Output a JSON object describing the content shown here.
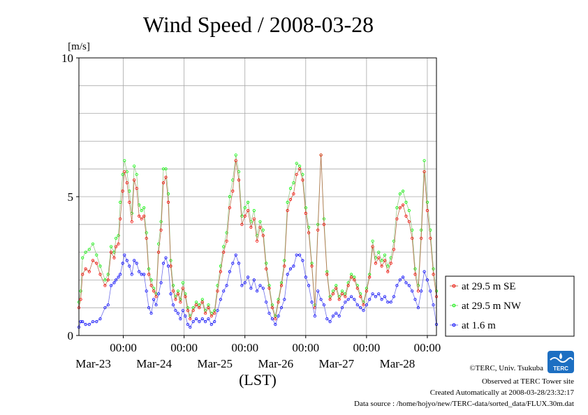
{
  "credits": {
    "copyright": "©TERC, Univ. Tsukuba",
    "observed": "Observed at TERC Tower site",
    "created": "Created Automatically at 2008-03-28/23:32:17",
    "source": "Data source : /home/hojyo/new/TERC-data/sorted_data/FLUX.30m.dat"
  },
  "logo": {
    "text": "TERC"
  },
  "chart_data": {
    "type": "line",
    "title": "Wind Speed / 2008-03-28",
    "ylabel": "[m/s]",
    "xlabel": "(LST)",
    "ylim": [
      0,
      10
    ],
    "y_ticks": [
      "0",
      "5",
      "10"
    ],
    "xlim": [
      -0.73,
      5.15
    ],
    "x_unit": "days from 2008-03-23 00:00 LST",
    "x_ticks": [
      {
        "time": "00:00",
        "date": "Mar-23"
      },
      {
        "time": "00:00",
        "date": "Mar-24"
      },
      {
        "time": "00:00",
        "date": "Mar-25"
      },
      {
        "time": "00:00",
        "date": "Mar-26"
      },
      {
        "time": "00:00",
        "date": "Mar-27"
      },
      {
        "time": "00:00",
        "date": "Mar-28"
      }
    ],
    "grid": true,
    "legend_position": "right",
    "series": [
      {
        "name": "at 29.5 m SE",
        "color": "#ff0000",
        "x": [
          -0.73,
          -0.7,
          -0.67,
          -0.62,
          -0.56,
          -0.5,
          -0.44,
          -0.38,
          -0.3,
          -0.25,
          -0.2,
          -0.15,
          -0.12,
          -0.08,
          -0.05,
          -0.01,
          0.02,
          0.06,
          0.1,
          0.14,
          0.18,
          0.22,
          0.26,
          0.3,
          0.34,
          0.38,
          0.42,
          0.46,
          0.5,
          0.54,
          0.58,
          0.62,
          0.66,
          0.7,
          0.74,
          0.78,
          0.82,
          0.86,
          0.9,
          0.94,
          0.98,
          1.02,
          1.06,
          1.1,
          1.15,
          1.2,
          1.25,
          1.3,
          1.35,
          1.4,
          1.45,
          1.5,
          1.55,
          1.6,
          1.65,
          1.7,
          1.75,
          1.8,
          1.85,
          1.9,
          1.95,
          2.0,
          2.05,
          2.1,
          2.15,
          2.2,
          2.25,
          2.3,
          2.35,
          2.4,
          2.45,
          2.5,
          2.55,
          2.6,
          2.65,
          2.7,
          2.75,
          2.8,
          2.85,
          2.9,
          2.95,
          3.0,
          3.05,
          3.1,
          3.15,
          3.2,
          3.25,
          3.3,
          3.35,
          3.4,
          3.45,
          3.5,
          3.55,
          3.6,
          3.65,
          3.7,
          3.75,
          3.8,
          3.85,
          3.9,
          3.95,
          4.0,
          4.05,
          4.1,
          4.15,
          4.2,
          4.25,
          4.3,
          4.35,
          4.4,
          4.45,
          4.5,
          4.55,
          4.6,
          4.65,
          4.7,
          4.75,
          4.8,
          4.85,
          4.9,
          4.95,
          5.0,
          5.05,
          5.1,
          5.15
        ],
        "values": [
          1.0,
          1.3,
          2.2,
          2.4,
          2.3,
          2.7,
          2.6,
          2.2,
          1.8,
          2.0,
          3.0,
          2.8,
          3.2,
          3.3,
          4.2,
          5.2,
          5.9,
          5.5,
          4.8,
          4.1,
          5.6,
          5.3,
          4.3,
          4.2,
          4.3,
          3.5,
          2.2,
          1.8,
          1.6,
          1.4,
          3.0,
          3.8,
          5.5,
          5.7,
          4.8,
          2.5,
          1.6,
          1.3,
          1.5,
          1.2,
          1.7,
          1.4,
          0.9,
          0.6,
          0.9,
          1.1,
          1.0,
          1.2,
          0.8,
          1.0,
          0.7,
          0.8,
          1.6,
          2.3,
          3.0,
          3.4,
          4.6,
          5.2,
          6.3,
          5.6,
          4.0,
          4.3,
          4.5,
          3.9,
          4.2,
          3.4,
          3.9,
          3.6,
          2.4,
          1.7,
          1.0,
          0.6,
          1.2,
          1.8,
          2.5,
          4.5,
          4.9,
          5.1,
          5.8,
          6.0,
          5.6,
          4.4,
          3.7,
          2.5,
          1.0,
          3.8,
          6.5,
          4.0,
          2.2,
          1.3,
          1.5,
          1.7,
          1.3,
          1.5,
          1.4,
          1.8,
          2.1,
          2.0,
          1.7,
          1.4,
          1.1,
          1.6,
          2.1,
          3.2,
          2.6,
          2.8,
          2.5,
          2.7,
          2.3,
          2.6,
          3.1,
          4.2,
          4.6,
          4.7,
          4.3,
          4.1,
          3.5,
          2.2,
          1.6,
          3.5,
          5.9,
          4.5,
          3.5,
          2.2,
          1.4
        ]
      },
      {
        "name": "at 29.5 m NW",
        "color": "#00ff00",
        "x": [
          -0.73,
          -0.7,
          -0.67,
          -0.62,
          -0.56,
          -0.5,
          -0.44,
          -0.38,
          -0.3,
          -0.25,
          -0.2,
          -0.15,
          -0.12,
          -0.08,
          -0.05,
          -0.01,
          0.02,
          0.06,
          0.1,
          0.14,
          0.18,
          0.22,
          0.26,
          0.3,
          0.34,
          0.38,
          0.42,
          0.46,
          0.5,
          0.54,
          0.58,
          0.62,
          0.66,
          0.7,
          0.74,
          0.78,
          0.82,
          0.86,
          0.9,
          0.94,
          0.98,
          1.02,
          1.06,
          1.1,
          1.15,
          1.2,
          1.25,
          1.3,
          1.35,
          1.4,
          1.45,
          1.5,
          1.55,
          1.6,
          1.65,
          1.7,
          1.75,
          1.8,
          1.85,
          1.9,
          1.95,
          2.0,
          2.05,
          2.1,
          2.15,
          2.2,
          2.25,
          2.3,
          2.35,
          2.4,
          2.45,
          2.5,
          2.55,
          2.6,
          2.65,
          2.7,
          2.75,
          2.8,
          2.85,
          2.9,
          2.95,
          3.0,
          3.05,
          3.1,
          3.15,
          3.2,
          3.25,
          3.3,
          3.35,
          3.4,
          3.45,
          3.5,
          3.55,
          3.6,
          3.65,
          3.7,
          3.75,
          3.8,
          3.85,
          3.9,
          3.95,
          4.0,
          4.05,
          4.1,
          4.15,
          4.2,
          4.25,
          4.3,
          4.35,
          4.4,
          4.45,
          4.5,
          4.55,
          4.6,
          4.65,
          4.7,
          4.75,
          4.8,
          4.85,
          4.9,
          4.95,
          5.0,
          5.05,
          5.1,
          5.15
        ],
        "values": [
          1.2,
          1.6,
          2.8,
          3.0,
          3.1,
          3.3,
          2.9,
          2.5,
          2.0,
          2.2,
          3.2,
          3.0,
          3.5,
          3.6,
          4.8,
          5.8,
          6.3,
          5.9,
          5.2,
          4.4,
          6.1,
          5.8,
          4.7,
          4.5,
          4.6,
          3.7,
          2.4,
          2.0,
          1.7,
          1.5,
          3.3,
          4.1,
          6.0,
          6.0,
          5.1,
          2.7,
          1.8,
          1.4,
          1.6,
          1.3,
          1.9,
          1.5,
          1.0,
          0.7,
          1.0,
          1.2,
          1.1,
          1.3,
          0.9,
          1.1,
          0.8,
          0.9,
          1.8,
          2.5,
          3.2,
          3.7,
          5.0,
          5.6,
          6.5,
          5.9,
          4.3,
          4.6,
          4.8,
          4.1,
          4.5,
          3.6,
          4.1,
          3.8,
          2.6,
          1.8,
          1.1,
          0.7,
          1.3,
          1.9,
          2.7,
          4.8,
          5.3,
          5.5,
          6.2,
          6.1,
          5.8,
          4.6,
          3.9,
          2.6,
          1.1,
          4.0,
          6.5,
          4.2,
          2.3,
          1.4,
          1.6,
          1.8,
          1.4,
          1.6,
          1.5,
          1.9,
          2.2,
          2.1,
          1.8,
          1.5,
          1.2,
          1.7,
          2.2,
          3.4,
          2.8,
          3.0,
          2.7,
          2.9,
          2.5,
          2.8,
          3.4,
          4.6,
          5.1,
          5.2,
          4.8,
          4.5,
          3.8,
          2.4,
          1.8,
          3.8,
          6.3,
          4.8,
          3.8,
          2.4,
          1.6
        ]
      },
      {
        "name": "at 1.6 m",
        "color": "#0000ff",
        "x": [
          -0.73,
          -0.7,
          -0.67,
          -0.62,
          -0.56,
          -0.5,
          -0.44,
          -0.38,
          -0.3,
          -0.25,
          -0.2,
          -0.15,
          -0.12,
          -0.08,
          -0.05,
          -0.01,
          0.02,
          0.06,
          0.1,
          0.14,
          0.18,
          0.22,
          0.26,
          0.3,
          0.34,
          0.38,
          0.42,
          0.46,
          0.5,
          0.54,
          0.58,
          0.62,
          0.66,
          0.7,
          0.74,
          0.78,
          0.82,
          0.86,
          0.9,
          0.94,
          0.98,
          1.02,
          1.06,
          1.1,
          1.15,
          1.2,
          1.25,
          1.3,
          1.35,
          1.4,
          1.45,
          1.5,
          1.55,
          1.6,
          1.65,
          1.7,
          1.75,
          1.8,
          1.85,
          1.9,
          1.95,
          2.0,
          2.05,
          2.1,
          2.15,
          2.2,
          2.25,
          2.3,
          2.35,
          2.4,
          2.45,
          2.5,
          2.55,
          2.6,
          2.65,
          2.7,
          2.75,
          2.8,
          2.85,
          2.9,
          2.95,
          3.0,
          3.05,
          3.1,
          3.15,
          3.2,
          3.25,
          3.3,
          3.35,
          3.4,
          3.45,
          3.5,
          3.55,
          3.6,
          3.65,
          3.7,
          3.75,
          3.8,
          3.85,
          3.9,
          3.95,
          4.0,
          4.05,
          4.1,
          4.15,
          4.2,
          4.25,
          4.3,
          4.35,
          4.4,
          4.45,
          4.5,
          4.55,
          4.6,
          4.65,
          4.7,
          4.75,
          4.8,
          4.85,
          4.9,
          4.95,
          5.0,
          5.05,
          5.1,
          5.15
        ],
        "values": [
          0.3,
          0.5,
          0.5,
          0.4,
          0.4,
          0.5,
          0.5,
          0.6,
          1.0,
          1.1,
          1.8,
          1.9,
          2.0,
          2.1,
          2.2,
          2.6,
          2.9,
          2.7,
          2.5,
          2.2,
          2.7,
          2.6,
          2.3,
          2.2,
          2.2,
          1.6,
          1.0,
          0.8,
          1.3,
          1.1,
          1.5,
          1.9,
          2.6,
          2.8,
          2.5,
          1.5,
          1.1,
          0.9,
          0.8,
          0.6,
          0.9,
          0.7,
          0.4,
          0.3,
          0.5,
          0.6,
          0.5,
          0.6,
          0.5,
          0.6,
          0.4,
          0.5,
          0.9,
          1.3,
          1.6,
          1.8,
          2.3,
          2.6,
          2.9,
          2.6,
          1.8,
          1.9,
          2.1,
          1.7,
          2.0,
          1.6,
          1.8,
          1.7,
          1.2,
          0.8,
          0.6,
          0.4,
          0.7,
          1.0,
          1.3,
          2.2,
          2.4,
          2.5,
          2.9,
          2.9,
          2.7,
          2.1,
          1.8,
          1.2,
          0.7,
          1.6,
          1.3,
          1.1,
          0.6,
          0.5,
          0.7,
          0.8,
          0.7,
          1.0,
          1.2,
          1.3,
          1.4,
          1.3,
          1.1,
          1.0,
          0.9,
          1.1,
          1.3,
          1.5,
          1.4,
          1.5,
          1.3,
          1.4,
          1.2,
          1.2,
          1.4,
          1.8,
          2.0,
          2.1,
          1.9,
          1.8,
          1.6,
          1.3,
          1.0,
          1.6,
          2.3,
          2.0,
          1.6,
          1.1,
          0.4
        ]
      }
    ]
  }
}
